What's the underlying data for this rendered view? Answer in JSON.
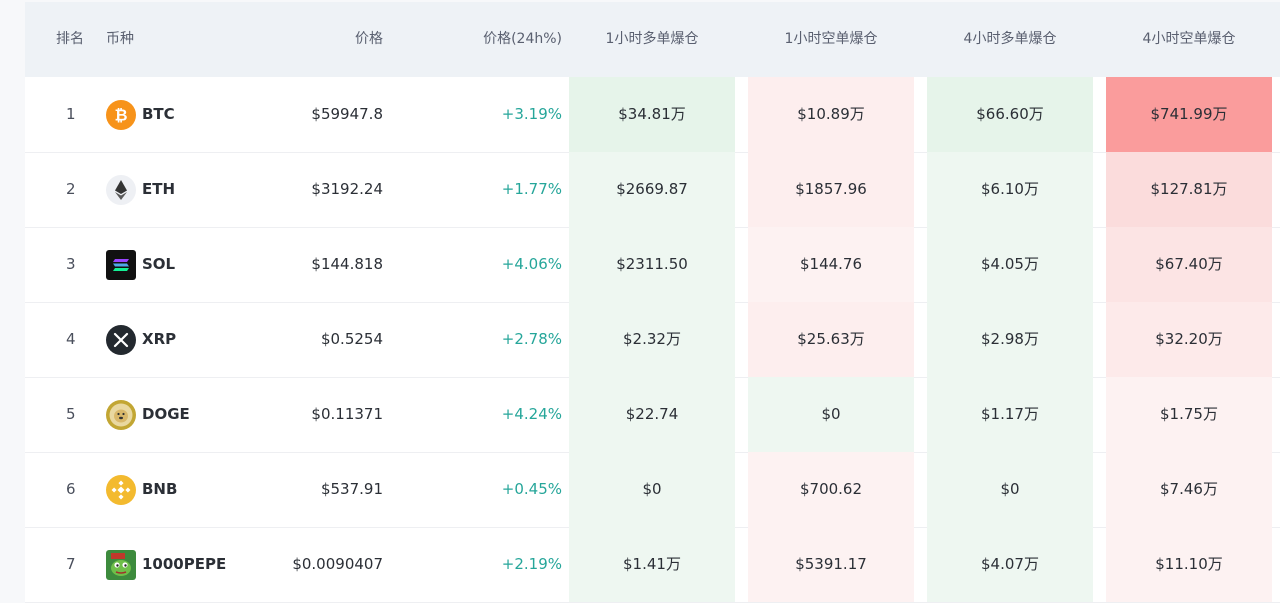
{
  "headers": {
    "rank": "排名",
    "coin": "币种",
    "price": "价格",
    "change": "价格(24h%)",
    "long_1h": "1小时多单爆仓",
    "short_1h": "1小时空单爆仓",
    "long_4h": "4小时多单爆仓",
    "short_4h": "4小时空单爆仓"
  },
  "rows": [
    {
      "rank": "1",
      "symbol": "BTC",
      "icon": "bitcoin-icon",
      "price": "$59947.8",
      "change": "+3.19%",
      "long_1h": "$34.81万",
      "short_1h": "$10.89万",
      "long_4h": "$66.60万",
      "short_4h": "$741.99万",
      "bg": [
        "#e6f4ea",
        "#fdeeee",
        "#e6f4ea",
        "#fa9c9c"
      ]
    },
    {
      "rank": "2",
      "symbol": "ETH",
      "icon": "ethereum-icon",
      "price": "$3192.24",
      "change": "+1.77%",
      "long_1h": "$2669.87",
      "short_1h": "$1857.96",
      "long_4h": "$6.10万",
      "short_4h": "$127.81万",
      "bg": [
        "#eef7f1",
        "#fdeeee",
        "#eef7f1",
        "#fbdcdc"
      ]
    },
    {
      "rank": "3",
      "symbol": "SOL",
      "icon": "solana-icon",
      "price": "$144.818",
      "change": "+4.06%",
      "long_1h": "$2311.50",
      "short_1h": "$144.76",
      "long_4h": "$4.05万",
      "short_4h": "$67.40万",
      "bg": [
        "#eef7f1",
        "#fdf2f2",
        "#eef7f1",
        "#fce4e4"
      ]
    },
    {
      "rank": "4",
      "symbol": "XRP",
      "icon": "xrp-icon",
      "price": "$0.5254",
      "change": "+2.78%",
      "long_1h": "$2.32万",
      "short_1h": "$25.63万",
      "long_4h": "$2.98万",
      "short_4h": "$32.20万",
      "bg": [
        "#eef7f1",
        "#fdeeee",
        "#eef7f1",
        "#fdeaea"
      ]
    },
    {
      "rank": "5",
      "symbol": "DOGE",
      "icon": "doge-icon",
      "price": "$0.11371",
      "change": "+4.24%",
      "long_1h": "$22.74",
      "short_1h": "$0",
      "long_4h": "$1.17万",
      "short_4h": "$1.75万",
      "bg": [
        "#eef7f1",
        "#eef7f1",
        "#eef7f1",
        "#fdf2f2"
      ]
    },
    {
      "rank": "6",
      "symbol": "BNB",
      "icon": "bnb-icon",
      "price": "$537.91",
      "change": "+0.45%",
      "long_1h": "$0",
      "short_1h": "$700.62",
      "long_4h": "$0",
      "short_4h": "$7.46万",
      "bg": [
        "#eef7f1",
        "#fdf2f2",
        "#eef7f1",
        "#fdf2f2"
      ]
    },
    {
      "rank": "7",
      "symbol": "1000PEPE",
      "icon": "pepe-icon",
      "price": "$0.0090407",
      "change": "+2.19%",
      "long_1h": "$1.41万",
      "short_1h": "$5391.17",
      "long_4h": "$4.07万",
      "short_4h": "$11.10万",
      "bg": [
        "#eef7f1",
        "#fdf2f2",
        "#eef7f1",
        "#fdf2f2"
      ]
    }
  ]
}
